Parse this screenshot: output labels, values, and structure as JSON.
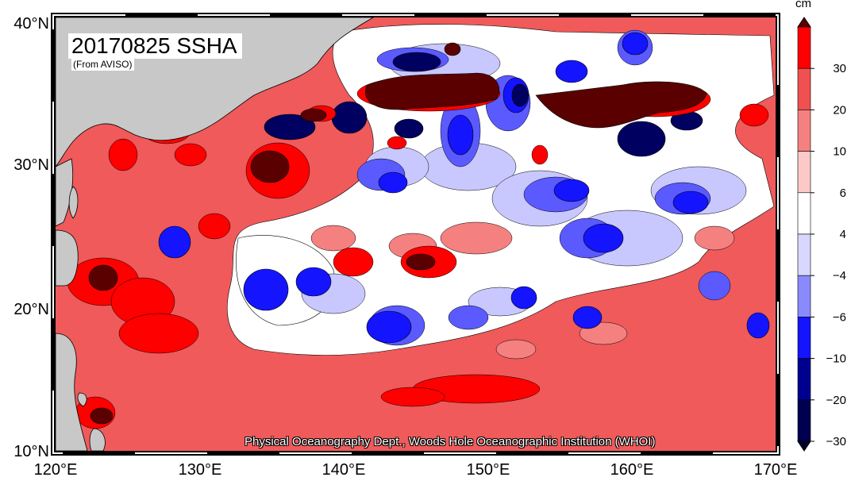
{
  "map": {
    "title": "20170825 SSHA",
    "subtitle": "(From AVISO)",
    "credit": "Physical Oceanography Dept., Woods Hole Oceanographic Institution (WHOI)",
    "lon_labels": [
      "120°E",
      "130°E",
      "140°E",
      "150°E",
      "160°E",
      "170°E"
    ],
    "lat_labels": [
      "10°N",
      "20°N",
      "30°N",
      "40°N"
    ],
    "lon_range": [
      120,
      170
    ],
    "lat_range": [
      10,
      40
    ],
    "colors": {
      "land": "#c8c8c8",
      "ocean_base": "#f05a5a"
    }
  },
  "colorbar": {
    "units": "cm",
    "tick_labels": [
      "30",
      "20",
      "10",
      "6",
      "4",
      "−4",
      "−6",
      "−10",
      "−20",
      "−30"
    ],
    "colors": [
      "#5a0000",
      "#ff0000",
      "#f05050",
      "#f58080",
      "#fcc8c8",
      "#ffffff",
      "#d8d8ff",
      "#8a8aff",
      "#1414ff",
      "#000090",
      "#000050",
      "#000028"
    ]
  }
}
